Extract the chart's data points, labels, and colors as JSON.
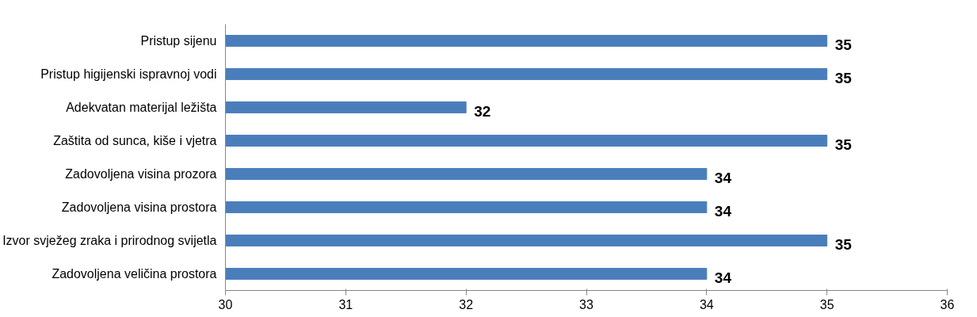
{
  "chart_data": {
    "type": "bar",
    "orientation": "horizontal",
    "categories": [
      "Pristup sijenu",
      "Pristup higijenski ispravnoj vodi",
      "Adekvatan materijal ležišta",
      "Zaštita od sunca, kiše i vjetra",
      "Zadovoljena visina prozora",
      "Zadovoljena visina prostora",
      "Izvor svježeg zraka i prirodnog svijetla",
      "Zadovoljena veličina prostora"
    ],
    "values": [
      35,
      35,
      32,
      35,
      34,
      34,
      35,
      34
    ],
    "color": "#4a7ebb",
    "xlim": [
      30,
      36
    ],
    "xticks": [
      30,
      31,
      32,
      33,
      34,
      35,
      36
    ],
    "data_labels": true,
    "grid": false
  }
}
